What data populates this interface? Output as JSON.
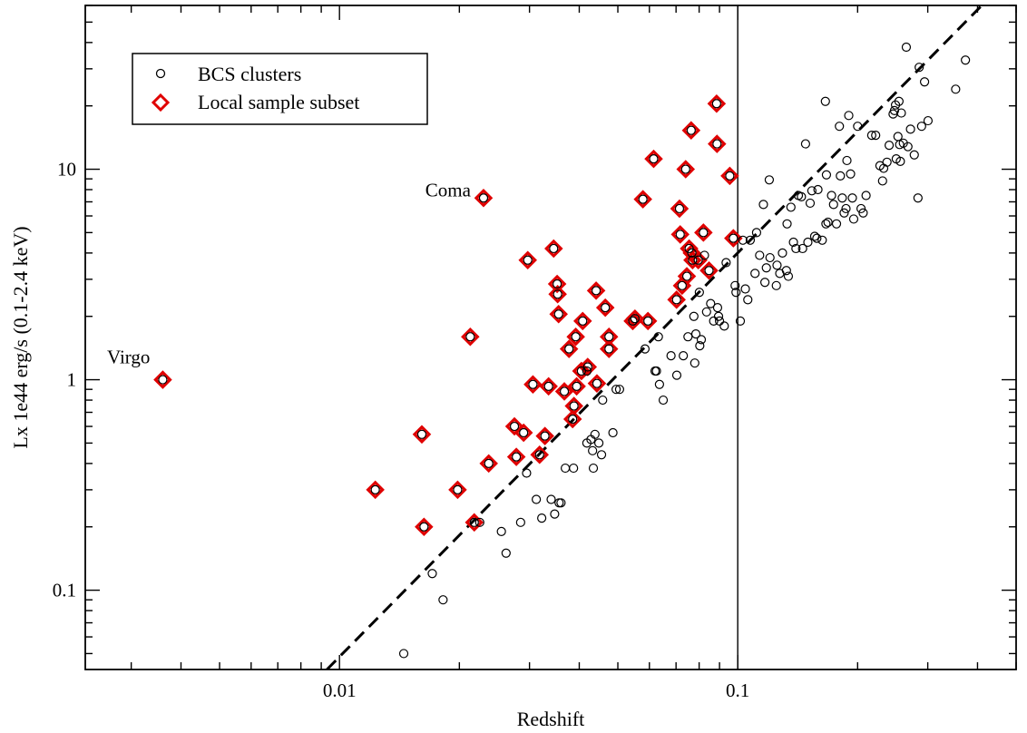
{
  "chart_data": {
    "type": "scatter",
    "xlabel": "Redshift",
    "ylabel": "Lx 1e44 erg/s (0.1-2.4 keV)",
    "x_scale": "log",
    "y_scale": "log",
    "xlim": [
      0.0023,
      0.5
    ],
    "ylim": [
      0.042,
      60
    ],
    "x_ticks": [
      {
        "value": 0.01,
        "label": "0.01"
      },
      {
        "value": 0.1,
        "label": "0.1"
      }
    ],
    "y_ticks": [
      {
        "value": 0.1,
        "label": "0.1"
      },
      {
        "value": 1,
        "label": "1"
      },
      {
        "value": 10,
        "label": "10"
      }
    ],
    "grid": false,
    "legend": {
      "position": "top-left",
      "entries": [
        {
          "label": "BCS clusters",
          "marker": "circle-open",
          "color": "#000000"
        },
        {
          "label": "Local sample subset",
          "marker": "diamond-open",
          "color": "#e00000"
        }
      ]
    },
    "annotations": [
      {
        "text": "Coma",
        "x": 0.023,
        "y": 7.3
      },
      {
        "text": "Virgo",
        "x": 0.0036,
        "y": 1.0
      }
    ],
    "reference_lines": [
      {
        "type": "vertical",
        "x": 0.1,
        "style": "solid",
        "color": "#000000"
      },
      {
        "type": "power-law",
        "style": "dashed",
        "color": "#000000",
        "points": [
          [
            0.0093,
            0.042
          ],
          [
            0.41,
            60
          ]
        ]
      }
    ],
    "series": [
      {
        "name": "BCS clusters",
        "marker": "circle-open",
        "color": "#000000",
        "points": [
          [
            0.0036,
            1.0
          ],
          [
            0.0123,
            0.3
          ],
          [
            0.0161,
            0.55
          ],
          [
            0.0163,
            0.2
          ],
          [
            0.0171,
            0.12
          ],
          [
            0.0182,
            0.09
          ],
          [
            0.0145,
            0.05
          ],
          [
            0.0198,
            0.3
          ],
          [
            0.0213,
            1.6
          ],
          [
            0.0218,
            0.21
          ],
          [
            0.0225,
            0.21
          ],
          [
            0.023,
            7.3
          ],
          [
            0.0237,
            0.4
          ],
          [
            0.0255,
            0.19
          ],
          [
            0.0262,
            0.15
          ],
          [
            0.0275,
            0.6
          ],
          [
            0.0278,
            0.43
          ],
          [
            0.0285,
            0.21
          ],
          [
            0.029,
            0.56
          ],
          [
            0.0295,
            0.36
          ],
          [
            0.0297,
            3.7
          ],
          [
            0.0306,
            0.95
          ],
          [
            0.0312,
            0.27
          ],
          [
            0.0318,
            0.44
          ],
          [
            0.0322,
            0.22
          ],
          [
            0.0328,
            0.54
          ],
          [
            0.0335,
            0.93
          ],
          [
            0.034,
            0.27
          ],
          [
            0.0345,
            4.2
          ],
          [
            0.0347,
            0.23
          ],
          [
            0.0352,
            2.85
          ],
          [
            0.0353,
            2.55
          ],
          [
            0.0355,
            2.05
          ],
          [
            0.0356,
            0.26
          ],
          [
            0.036,
            0.26
          ],
          [
            0.0367,
            0.88
          ],
          [
            0.0369,
            0.38
          ],
          [
            0.0377,
            1.4
          ],
          [
            0.0385,
            0.65
          ],
          [
            0.0387,
            0.38
          ],
          [
            0.0388,
            0.75
          ],
          [
            0.0392,
            1.6
          ],
          [
            0.0394,
            0.93
          ],
          [
            0.0405,
            1.1
          ],
          [
            0.0408,
            1.9
          ],
          [
            0.0418,
            0.5
          ],
          [
            0.0418,
            1.1
          ],
          [
            0.042,
            1.15
          ],
          [
            0.0428,
            0.52
          ],
          [
            0.0432,
            0.46
          ],
          [
            0.0434,
            0.38
          ],
          [
            0.0438,
            0.55
          ],
          [
            0.0441,
            2.65
          ],
          [
            0.0443,
            0.96
          ],
          [
            0.0448,
            0.5
          ],
          [
            0.0455,
            0.44
          ],
          [
            0.0458,
            0.8
          ],
          [
            0.0465,
            2.2
          ],
          [
            0.0475,
            1.6
          ],
          [
            0.0475,
            1.4
          ],
          [
            0.0486,
            0.56
          ],
          [
            0.0495,
            0.9
          ],
          [
            0.0505,
            0.9
          ],
          [
            0.0545,
            1.9
          ],
          [
            0.0552,
            1.95
          ],
          [
            0.0578,
            7.2
          ],
          [
            0.0585,
            1.4
          ],
          [
            0.0595,
            1.9
          ],
          [
            0.0615,
            11.2
          ],
          [
            0.062,
            1.1
          ],
          [
            0.0625,
            1.1
          ],
          [
            0.0632,
            1.6
          ],
          [
            0.0636,
            0.95
          ],
          [
            0.065,
            0.8
          ],
          [
            0.068,
            1.3
          ],
          [
            0.0702,
            2.4
          ],
          [
            0.0703,
            1.05
          ],
          [
            0.0714,
            6.5
          ],
          [
            0.0717,
            4.9
          ],
          [
            0.0725,
            2.8
          ],
          [
            0.073,
            1.3
          ],
          [
            0.074,
            10.0
          ],
          [
            0.0745,
            3.1
          ],
          [
            0.075,
            1.6
          ],
          [
            0.0755,
            4.2
          ],
          [
            0.0764,
            15.3
          ],
          [
            0.0767,
            4.0
          ],
          [
            0.077,
            3.7
          ],
          [
            0.0776,
            2.0
          ],
          [
            0.078,
            1.2
          ],
          [
            0.0785,
            1.65
          ],
          [
            0.0796,
            3.7
          ],
          [
            0.0801,
            2.6
          ],
          [
            0.0803,
            1.45
          ],
          [
            0.081,
            1.55
          ],
          [
            0.082,
            5.0
          ],
          [
            0.0825,
            3.9
          ],
          [
            0.0835,
            2.1
          ],
          [
            0.0847,
            3.3
          ],
          [
            0.0855,
            2.3
          ],
          [
            0.087,
            1.9
          ],
          [
            0.0885,
            20.5
          ],
          [
            0.0887,
            13.2
          ],
          [
            0.089,
            2.2
          ],
          [
            0.0895,
            2.0
          ],
          [
            0.09,
            1.9
          ],
          [
            0.0925,
            1.8
          ],
          [
            0.0935,
            3.6
          ],
          [
            0.0955,
            9.3
          ],
          [
            0.0975,
            4.7
          ],
          [
            0.0985,
            2.8
          ],
          [
            0.099,
            2.6
          ],
          [
            0.1015,
            1.9
          ],
          [
            0.103,
            4.6
          ],
          [
            0.1045,
            2.7
          ],
          [
            0.106,
            2.4
          ],
          [
            0.1075,
            4.6
          ],
          [
            0.1105,
            3.2
          ],
          [
            0.1115,
            5.0
          ],
          [
            0.1135,
            3.9
          ],
          [
            0.116,
            6.8
          ],
          [
            0.117,
            2.9
          ],
          [
            0.118,
            3.4
          ],
          [
            0.12,
            8.9
          ],
          [
            0.1205,
            3.8
          ],
          [
            0.125,
            2.8
          ],
          [
            0.1255,
            3.5
          ],
          [
            0.1275,
            3.2
          ],
          [
            0.1295,
            4.0
          ],
          [
            0.1325,
            3.3
          ],
          [
            0.133,
            5.5
          ],
          [
            0.134,
            3.1
          ],
          [
            0.136,
            6.6
          ],
          [
            0.138,
            4.5
          ],
          [
            0.14,
            4.2
          ],
          [
            0.142,
            7.5
          ],
          [
            0.1445,
            7.4
          ],
          [
            0.1455,
            4.2
          ],
          [
            0.148,
            13.2
          ],
          [
            0.15,
            4.5
          ],
          [
            0.152,
            6.9
          ],
          [
            0.1535,
            7.9
          ],
          [
            0.156,
            4.8
          ],
          [
            0.158,
            4.7
          ],
          [
            0.159,
            8.0
          ],
          [
            0.163,
            4.6
          ],
          [
            0.166,
            21.0
          ],
          [
            0.167,
            9.4
          ],
          [
            0.1665,
            5.5
          ],
          [
            0.1685,
            5.6
          ],
          [
            0.172,
            7.5
          ],
          [
            0.174,
            6.8
          ],
          [
            0.177,
            5.5
          ],
          [
            0.18,
            16.0
          ],
          [
            0.181,
            9.3
          ],
          [
            0.183,
            7.3
          ],
          [
            0.185,
            6.2
          ],
          [
            0.187,
            6.5
          ],
          [
            0.188,
            11.0
          ],
          [
            0.19,
            18.0
          ],
          [
            0.192,
            9.5
          ],
          [
            0.194,
            7.3
          ],
          [
            0.1955,
            5.8
          ],
          [
            0.2,
            16.0
          ],
          [
            0.204,
            6.5
          ],
          [
            0.2065,
            6.2
          ],
          [
            0.21,
            7.5
          ],
          [
            0.217,
            14.5
          ],
          [
            0.222,
            14.5
          ],
          [
            0.2275,
            10.4
          ],
          [
            0.231,
            8.8
          ],
          [
            0.2325,
            10.1
          ],
          [
            0.237,
            10.8
          ],
          [
            0.24,
            13.0
          ],
          [
            0.2455,
            18.3
          ],
          [
            0.2475,
            19.0
          ],
          [
            0.249,
            20.2
          ],
          [
            0.25,
            11.2
          ],
          [
            0.2525,
            14.3
          ],
          [
            0.254,
            21.0
          ],
          [
            0.255,
            13.1
          ],
          [
            0.256,
            10.9
          ],
          [
            0.2575,
            18.5
          ],
          [
            0.2605,
            13.3
          ],
          [
            0.265,
            38.0
          ],
          [
            0.2675,
            12.8
          ],
          [
            0.2715,
            15.5
          ],
          [
            0.2775,
            11.7
          ],
          [
            0.2835,
            7.3
          ],
          [
            0.2855,
            30.5
          ],
          [
            0.2895,
            16.0
          ],
          [
            0.2945,
            26.0
          ],
          [
            0.3005,
            17.0
          ],
          [
            0.3525,
            24.0
          ],
          [
            0.373,
            33.0
          ]
        ]
      },
      {
        "name": "Local sample subset",
        "marker": "diamond-open",
        "color": "#e00000",
        "points": [
          [
            0.0036,
            1.0
          ],
          [
            0.0123,
            0.3
          ],
          [
            0.0161,
            0.55
          ],
          [
            0.0163,
            0.2
          ],
          [
            0.0198,
            0.3
          ],
          [
            0.0213,
            1.6
          ],
          [
            0.0218,
            0.21
          ],
          [
            0.023,
            7.3
          ],
          [
            0.0237,
            0.4
          ],
          [
            0.0275,
            0.6
          ],
          [
            0.0278,
            0.43
          ],
          [
            0.029,
            0.56
          ],
          [
            0.0297,
            3.7
          ],
          [
            0.0306,
            0.95
          ],
          [
            0.0318,
            0.44
          ],
          [
            0.0328,
            0.54
          ],
          [
            0.0335,
            0.93
          ],
          [
            0.0345,
            4.2
          ],
          [
            0.0352,
            2.85
          ],
          [
            0.0353,
            2.55
          ],
          [
            0.0355,
            2.05
          ],
          [
            0.0367,
            0.88
          ],
          [
            0.0377,
            1.4
          ],
          [
            0.0385,
            0.65
          ],
          [
            0.0388,
            0.75
          ],
          [
            0.0392,
            1.6
          ],
          [
            0.0394,
            0.93
          ],
          [
            0.0405,
            1.1
          ],
          [
            0.0408,
            1.9
          ],
          [
            0.042,
            1.15
          ],
          [
            0.0441,
            2.65
          ],
          [
            0.0443,
            0.96
          ],
          [
            0.0465,
            2.2
          ],
          [
            0.0475,
            1.6
          ],
          [
            0.0475,
            1.4
          ],
          [
            0.0545,
            1.9
          ],
          [
            0.0552,
            1.95
          ],
          [
            0.0578,
            7.2
          ],
          [
            0.0595,
            1.9
          ],
          [
            0.0615,
            11.2
          ],
          [
            0.0702,
            2.4
          ],
          [
            0.0714,
            6.5
          ],
          [
            0.0717,
            4.9
          ],
          [
            0.0725,
            2.8
          ],
          [
            0.074,
            10.0
          ],
          [
            0.0745,
            3.1
          ],
          [
            0.0755,
            4.2
          ],
          [
            0.0764,
            15.3
          ],
          [
            0.0767,
            4.0
          ],
          [
            0.077,
            3.7
          ],
          [
            0.0796,
            3.7
          ],
          [
            0.082,
            5.0
          ],
          [
            0.0847,
            3.3
          ],
          [
            0.0885,
            20.5
          ],
          [
            0.0887,
            13.2
          ],
          [
            0.0955,
            9.3
          ],
          [
            0.0975,
            4.7
          ]
        ]
      }
    ]
  }
}
